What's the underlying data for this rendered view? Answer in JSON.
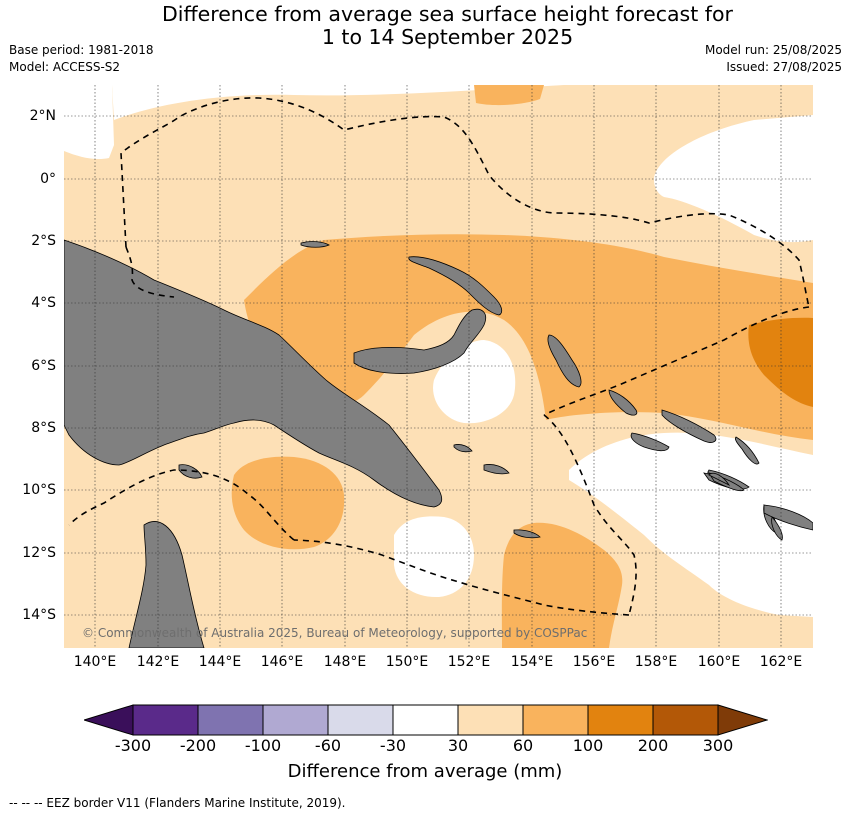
{
  "header": {
    "title_line1": "Difference from average sea surface height forecast for",
    "title_line2": "1 to 14 September 2025",
    "base_period": "Base period: 1981-2018",
    "model": "Model: ACCESS-S2",
    "model_run": "Model run: 25/08/2025",
    "issued": "Issued: 27/08/2025"
  },
  "map": {
    "lat_labels": [
      "2°N",
      "0°",
      "2°S",
      "4°S",
      "6°S",
      "8°S",
      "10°S",
      "12°S",
      "14°S"
    ],
    "lon_labels": [
      "140°E",
      "142°E",
      "144°E",
      "146°E",
      "148°E",
      "150°E",
      "152°E",
      "154°E",
      "156°E",
      "158°E",
      "160°E",
      "162°E"
    ],
    "copyright": "© Commonwealth of Australia 2025, Bureau of Meteorology, supported by COSPPac",
    "colors": {
      "land": "#808080",
      "ocean_neutral": "#ffffff",
      "band_30_60": "#fde0b6",
      "band_60_100": "#f9b35d",
      "band_100_200": "#e2830f",
      "eez_line": "#000000"
    }
  },
  "colorbar": {
    "ticks": [
      "-300",
      "-200",
      "-100",
      "-60",
      "-30",
      "30",
      "60",
      "100",
      "200",
      "300"
    ],
    "colors": [
      "#3a0f5a",
      "#5a2a8a",
      "#7f73b0",
      "#b0a9d2",
      "#d9daea",
      "#ffffff",
      "#fde0b6",
      "#f9b35d",
      "#e2830f",
      "#b35807",
      "#7f3b08"
    ],
    "label": "Difference from average (mm)"
  },
  "footer": {
    "eez_note": "--  --  -- EEZ border V11 (Flanders Marine Institute, 2019)."
  }
}
